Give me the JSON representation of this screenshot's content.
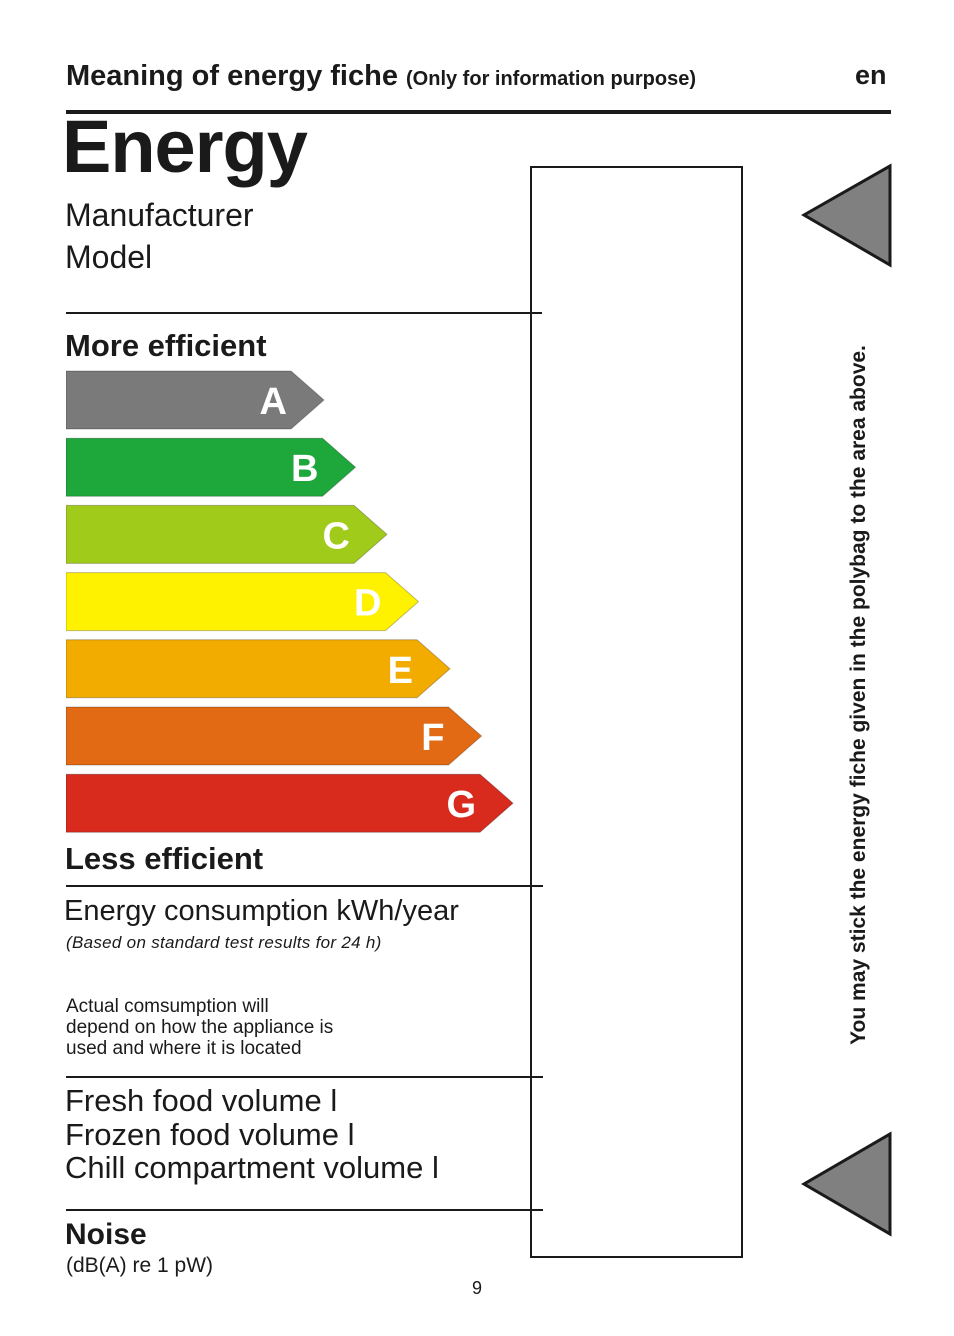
{
  "header": {
    "title": "Meaning of energy fiche",
    "note": "(Only for information purpose)",
    "language": "en"
  },
  "label": {
    "title": "Energy",
    "manufacturer": "Manufacturer",
    "model": "Model",
    "more_efficient": "More efficient",
    "less_efficient": "Less efficient",
    "classes": [
      {
        "letter": "A",
        "color": "#7b7a7a"
      },
      {
        "letter": "B",
        "color": "#1ea83c"
      },
      {
        "letter": "C",
        "color": "#a0cb1a"
      },
      {
        "letter": "D",
        "color": "#fff200"
      },
      {
        "letter": "E",
        "color": "#f2ac00"
      },
      {
        "letter": "F",
        "color": "#e36a14"
      },
      {
        "letter": "G",
        "color": "#d92a1e"
      }
    ],
    "consumption_label": "Energy consumption kWh/year",
    "consumption_note": "(Based on standard test results for 24 h)",
    "actual_note": [
      "Actual comsumption will",
      "depend on how the appliance is",
      "used and where it is located"
    ],
    "fresh_volume": "Fresh food volume l",
    "frozen_volume": "Frozen food volume l",
    "chill_volume": "Chill compartment volume l",
    "noise_label": "Noise",
    "noise_unit": "(dB(A) re 1 pW)"
  },
  "side_instruction": "You may stick the energy fiche given in the polybag to the area above.",
  "arrow_color": "#808080",
  "page_number": "9"
}
